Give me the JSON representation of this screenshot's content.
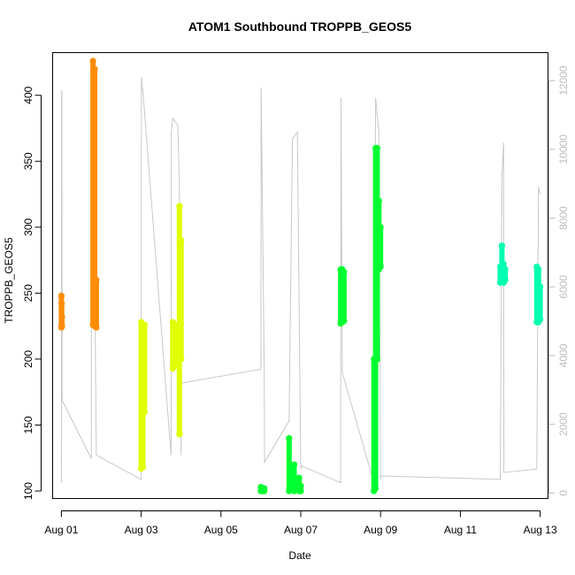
{
  "chart_data": {
    "type": "scatter",
    "title": "ATOM1 Southbound TROPPB_GEOS5",
    "xlabel": "Date",
    "ylabel": "TROPPB_GEOS5",
    "x_ticks": [
      "Aug 01",
      "Aug 03",
      "Aug 05",
      "Aug 07",
      "Aug 09",
      "Aug 11",
      "Aug 13"
    ],
    "y_ticks": [
      100,
      150,
      200,
      250,
      300,
      350,
      400
    ],
    "y2_ticks": [
      0,
      2000,
      4000,
      6000,
      8000,
      10000,
      12000
    ],
    "xlim": [
      "Jul 31 19:00",
      "Aug 13 05:00"
    ],
    "ylim": [
      94,
      432
    ],
    "y2lim": [
      -170,
      12800
    ],
    "colors": {
      "orange": "#ff8c00",
      "yellow": "#e0ff00",
      "green": "#00ff30",
      "teal": "#00ffb0",
      "altitude": "#c8c8c8"
    },
    "series": [
      {
        "color": "orange",
        "x": [
          "Aug 01 00:00",
          "Aug 01 00:10",
          "Aug 01 00:20"
        ],
        "y_range": [
          [
            224,
            248
          ],
          [
            226,
            242
          ],
          [
            225,
            232
          ]
        ]
      },
      {
        "color": "orange",
        "x": [
          "Aug 01 19:00",
          "Aug 01 20:00",
          "Aug 01 21:00"
        ],
        "y_range": [
          [
            226,
            426
          ],
          [
            225,
            420
          ],
          [
            224,
            260
          ]
        ]
      },
      {
        "color": "yellow",
        "x": [
          "Aug 03 00:00",
          "Aug 03 01:00",
          "Aug 03 02:00"
        ],
        "y_range": [
          [
            117,
            228
          ],
          [
            118,
            200
          ],
          [
            160,
            226
          ]
        ]
      },
      {
        "color": "yellow",
        "x": [
          "Aug 03 19:00",
          "Aug 03 21:00",
          "Aug 03 23:00",
          "Aug 04 00:00"
        ],
        "y_range": [
          [
            193,
            228
          ],
          [
            195,
            226
          ],
          [
            143,
            316
          ],
          [
            200,
            290
          ]
        ]
      },
      {
        "color": "green",
        "x": [
          "Aug 06 00:00",
          "Aug 06 01:00",
          "Aug 06 02:00"
        ],
        "y_range": [
          [
            100,
            103
          ],
          [
            100,
            102
          ],
          [
            100,
            102
          ]
        ]
      },
      {
        "color": "green",
        "x": [
          "Aug 06 17:00",
          "Aug 06 20:00",
          "Aug 06 23:00",
          "Aug 07 00:00"
        ],
        "y_range": [
          [
            100,
            140
          ],
          [
            100,
            120
          ],
          [
            100,
            110
          ],
          [
            100,
            104
          ]
        ]
      },
      {
        "color": "green",
        "x": [
          "Aug 08 00:00",
          "Aug 08 01:00",
          "Aug 08 02:00"
        ],
        "y_range": [
          [
            227,
            268
          ],
          [
            228,
            268
          ],
          [
            229,
            266
          ]
        ]
      },
      {
        "color": "green",
        "x": [
          "Aug 08 20:00",
          "Aug 08 21:00",
          "Aug 08 22:00",
          "Aug 08 23:00",
          "Aug 09 00:00"
        ],
        "y_range": [
          [
            100,
            200
          ],
          [
            102,
            360
          ],
          [
            200,
            360
          ],
          [
            268,
            320
          ],
          [
            270,
            300
          ]
        ]
      },
      {
        "color": "teal",
        "x": [
          "Aug 12 00:00",
          "Aug 12 01:00",
          "Aug 12 02:00",
          "Aug 12 03:00"
        ],
        "y_range": [
          [
            258,
            270
          ],
          [
            260,
            286
          ],
          [
            258,
            272
          ],
          [
            260,
            268
          ]
        ]
      },
      {
        "color": "teal",
        "x": [
          "Aug 12 22:00",
          "Aug 12 23:00",
          "Aug 13 00:00"
        ],
        "y_range": [
          [
            228,
            270
          ],
          [
            228,
            268
          ],
          [
            230,
            255
          ]
        ]
      }
    ],
    "altitude_series": {
      "color": "altitude",
      "x": [
        "Aug 01 00:00",
        "Aug 01 00:10",
        "Aug 01 00:20",
        "Aug 01 00:25",
        "Aug 01 18:00",
        "Aug 01 18:10",
        "Aug 01 18:40",
        "Aug 01 19:00",
        "Aug 01 21:00",
        "Aug 03 00:00",
        "Aug 03 00:10",
        "Aug 03 00:40",
        "Aug 03 01:00",
        "Aug 03 18:00",
        "Aug 03 18:10",
        "Aug 03 19:00",
        "Aug 03 22:00",
        "Aug 03 23:00",
        "Aug 04 00:00",
        "Aug 04 00:10",
        "Aug 06 00:00",
        "Aug 06 00:10",
        "Aug 06 02:00",
        "Aug 06 02:10",
        "Aug 06 17:00",
        "Aug 06 19:00",
        "Aug 06 22:00",
        "Aug 07 00:00",
        "Aug 07 00:10",
        "Aug 08 00:00",
        "Aug 08 00:10",
        "Aug 08 01:00",
        "Aug 08 20:00",
        "Aug 08 21:00",
        "Aug 08 23:00",
        "Aug 09 00:00",
        "Aug 09 00:10",
        "Aug 12 00:00",
        "Aug 12 01:00",
        "Aug 12 02:00",
        "Aug 12 02:10",
        "Aug 12 22:00",
        "Aug 12 23:00",
        "Aug 13 00:00"
      ],
      "y": [
        300,
        11700,
        11700,
        2700,
        1000,
        12000,
        10500,
        11800,
        1100,
        400,
        12100,
        11800,
        11700,
        1100,
        10500,
        10900,
        10700,
        9000,
        1100,
        3200,
        3600,
        11800,
        3600,
        900,
        2100,
        10300,
        10500,
        700,
        800,
        300,
        11500,
        3500,
        300,
        11500,
        10500,
        400,
        500,
        400,
        9200,
        10200,
        600,
        700,
        8900,
        8700
      ]
    }
  }
}
